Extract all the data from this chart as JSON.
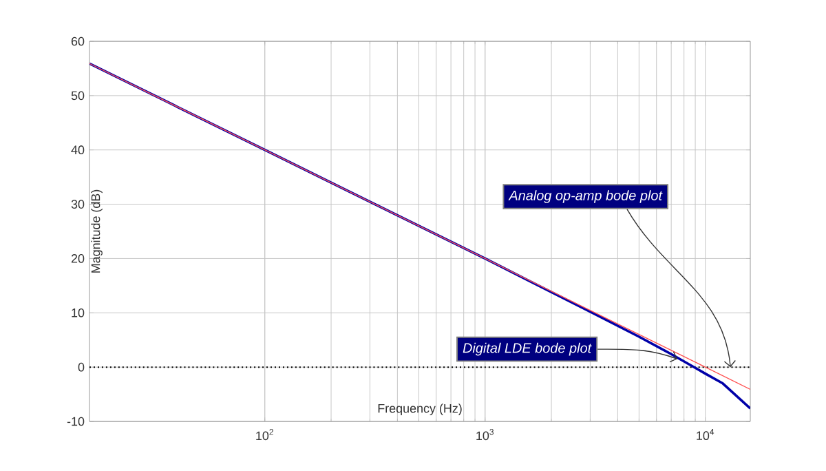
{
  "chart_data": {
    "type": "line",
    "xlabel": "Frequency (Hz)",
    "ylabel": "Magnitude (dB)",
    "log": "x",
    "xlim": [
      16,
      16000
    ],
    "ylim": [
      -10,
      60
    ],
    "xticks": [
      {
        "value": 100,
        "label": "10$^{2}$"
      },
      {
        "value": 1000,
        "label": "10$^{3}$"
      },
      {
        "value": 10000,
        "label": "10$^{4}$"
      }
    ],
    "yticks": [
      -10,
      0,
      10,
      20,
      30,
      40,
      50,
      60
    ],
    "grid": true,
    "line_style": "solid",
    "marker": "none",
    "series": [
      {
        "color": "#0000a8",
        "x": [
          16,
          100,
          1000,
          3000,
          5000,
          7000,
          10000,
          12000,
          16000
        ],
        "values": [
          55.9,
          40,
          20,
          10.2,
          5.6,
          2.4,
          -1.2,
          -3.0,
          -7.6
        ]
      },
      {
        "color": "#ff5050",
        "x": [
          16,
          100,
          1000,
          10000,
          16000
        ],
        "values": [
          55.9,
          40,
          20,
          0,
          -4.1
        ]
      }
    ],
    "ref_lines": [
      {
        "axis": "y",
        "value": 0,
        "color": "#000000",
        "line_style": "dotted"
      }
    ],
    "annotations": [
      {
        "text": "Analog op-amp bode plot",
        "x": 13000,
        "y": 0
      },
      {
        "text": "Digital LDE bode plot",
        "x": 7470,
        "y": 1.5
      }
    ]
  }
}
